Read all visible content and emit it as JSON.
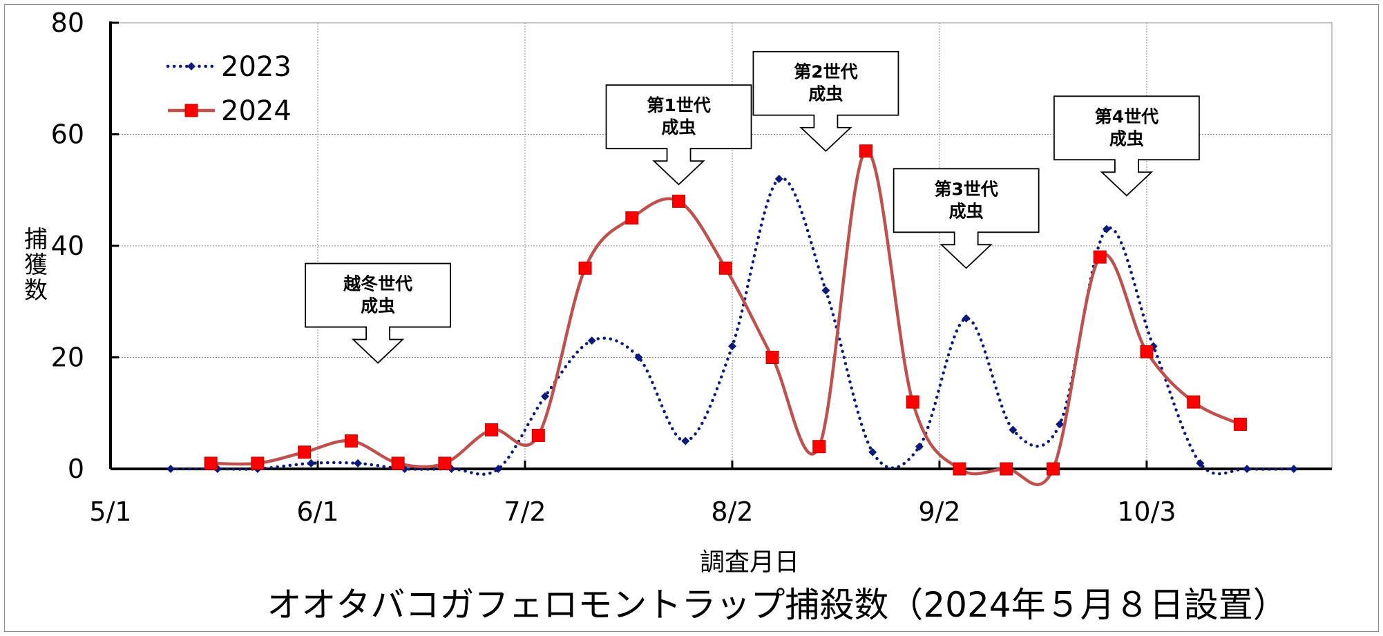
{
  "chart_data": {
    "type": "line",
    "title": "オオタバコガフェロモントラップ捕殺数（2024年５月８日設置）",
    "xlabel": "調査月日",
    "ylabel": "捕獲数",
    "ylim": [
      0,
      80
    ],
    "yticks": [
      "0",
      "20",
      "40",
      "60",
      "80"
    ],
    "xticks": [
      "5/1",
      "6/1",
      "7/2",
      "8/2",
      "9/2",
      "10/3"
    ],
    "xtick_dates": [
      "2024-05-01",
      "2024-06-01",
      "2024-07-02",
      "2024-08-02",
      "2024-09-02",
      "2024-10-03"
    ],
    "grid": true,
    "legend": "top-left",
    "series": [
      {
        "name": "2023",
        "color": "#0a1a7a",
        "style": "dotted",
        "points": [
          [
            "2024-05-10",
            0
          ],
          [
            "2024-05-17",
            0
          ],
          [
            "2024-05-23",
            0
          ],
          [
            "2024-05-31",
            1
          ],
          [
            "2024-06-07",
            1
          ],
          [
            "2024-06-14",
            0
          ],
          [
            "2024-06-21",
            0
          ],
          [
            "2024-06-28",
            0
          ],
          [
            "2024-07-05",
            13
          ],
          [
            "2024-07-12",
            23
          ],
          [
            "2024-07-19",
            20
          ],
          [
            "2024-07-26",
            5
          ],
          [
            "2024-08-02",
            22
          ],
          [
            "2024-08-09",
            52
          ],
          [
            "2024-08-16",
            32
          ],
          [
            "2024-08-23",
            3
          ],
          [
            "2024-08-30",
            4
          ],
          [
            "2024-09-06",
            27
          ],
          [
            "2024-09-13",
            7
          ],
          [
            "2024-09-20",
            8
          ],
          [
            "2024-09-27",
            43
          ],
          [
            "2024-10-04",
            22
          ],
          [
            "2024-10-11",
            1
          ],
          [
            "2024-10-18",
            0
          ],
          [
            "2024-10-25",
            0
          ]
        ]
      },
      {
        "name": "2024",
        "color": "#c0504d",
        "marker_color": "#ff0000",
        "style": "solid",
        "points": [
          [
            "2024-05-16",
            1
          ],
          [
            "2024-05-23",
            1
          ],
          [
            "2024-05-30",
            3
          ],
          [
            "2024-06-06",
            5
          ],
          [
            "2024-06-13",
            1
          ],
          [
            "2024-06-20",
            1
          ],
          [
            "2024-06-27",
            7
          ],
          [
            "2024-07-04",
            6
          ],
          [
            "2024-07-11",
            36
          ],
          [
            "2024-07-18",
            45
          ],
          [
            "2024-07-25",
            48
          ],
          [
            "2024-08-01",
            36
          ],
          [
            "2024-08-08",
            20
          ],
          [
            "2024-08-15",
            4
          ],
          [
            "2024-08-22",
            57
          ],
          [
            "2024-08-29",
            12
          ],
          [
            "2024-09-05",
            0
          ],
          [
            "2024-09-12",
            0
          ],
          [
            "2024-09-19",
            0
          ],
          [
            "2024-09-26",
            38
          ],
          [
            "2024-10-03",
            21
          ],
          [
            "2024-10-10",
            12
          ],
          [
            "2024-10-17",
            8
          ]
        ]
      }
    ],
    "annotations": [
      {
        "lines": [
          "越冬世代",
          "成虫"
        ],
        "date": "2024-06-10",
        "tip_value": 19
      },
      {
        "lines": [
          "第1世代",
          "成虫"
        ],
        "date": "2024-07-25",
        "tip_value": 51
      },
      {
        "lines": [
          "第2世代",
          "成虫"
        ],
        "date": "2024-08-16",
        "tip_value": 57
      },
      {
        "lines": [
          "第3世代",
          "成虫"
        ],
        "date": "2024-09-06",
        "tip_value": 36
      },
      {
        "lines": [
          "第4世代",
          "成虫"
        ],
        "date": "2024-09-30",
        "tip_value": 49
      }
    ]
  }
}
